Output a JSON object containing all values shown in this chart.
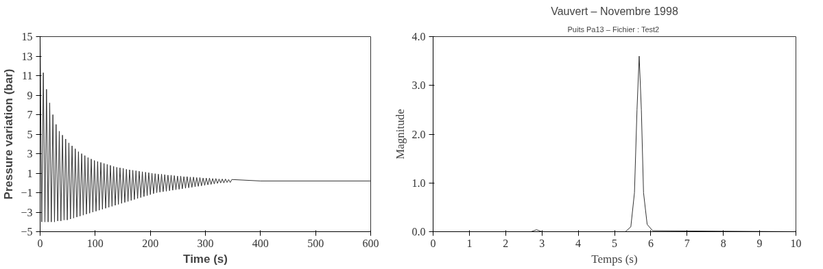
{
  "chart_data": [
    {
      "type": "line",
      "xlabel": "Time (s)",
      "ylabel": "Pressure variation (bar)",
      "xlim": [
        0,
        600
      ],
      "ylim": [
        -5,
        15
      ],
      "xticks": [
        0,
        100,
        200,
        300,
        400,
        500,
        600
      ],
      "yticks": [
        -5,
        -3,
        -1,
        1,
        3,
        5,
        7,
        9,
        11,
        13,
        15
      ],
      "grid": false,
      "series": [
        {
          "color": "#333333",
          "x": [
            0,
            2.9,
            5.8,
            8.7,
            11.6,
            14.5,
            17.4,
            20.3,
            23.2,
            26.1,
            29,
            31.9,
            34.8,
            37.7,
            40.6,
            43.5,
            46.4,
            49.3,
            52.2,
            55.1,
            58,
            60.9,
            63.8,
            66.7,
            69.6,
            72.5,
            75.4,
            78.3,
            81.2,
            84.1,
            87,
            89.9,
            92.8,
            95.7,
            98.6,
            101.5,
            104.4,
            107.3,
            110.2,
            113.1,
            116,
            118.9,
            121.8,
            124.7,
            127.6,
            130.5,
            133.4,
            136.3,
            139.2,
            142.1,
            145,
            147.9,
            150.8,
            153.7,
            156.6,
            159.5,
            162.4,
            165.3,
            168.2,
            171.1,
            174,
            176.9,
            179.8,
            182.7,
            185.6,
            188.5,
            191.4,
            194.3,
            197.2,
            200.1,
            203,
            205.9,
            208.8,
            211.7,
            214.6,
            217.5,
            220.4,
            223.3,
            226.2,
            229.1,
            232,
            234.9,
            237.8,
            240.7,
            243.6,
            246.5,
            249.4,
            252.3,
            255.2,
            258.1,
            261,
            263.9,
            266.8,
            269.7,
            272.6,
            275.5,
            278.4,
            281.3,
            284.2,
            287.1,
            290,
            292.9,
            295.8,
            298.7,
            301.6,
            304.5,
            307.4,
            310.3,
            313.2,
            316.1,
            319,
            321.9,
            324.8,
            327.7,
            330.6,
            333.5,
            336.4,
            339.3,
            342.2,
            345.1,
            348,
            400,
            600
          ],
          "values": [
            14.5,
            -4.0,
            11.3,
            -4.0,
            9.6,
            -4.0,
            8.2,
            -4.0,
            7.0,
            -4.0,
            6.0,
            -3.9,
            5.3,
            -3.9,
            4.9,
            -3.8,
            4.5,
            -3.8,
            4.1,
            -3.7,
            3.8,
            -3.6,
            3.5,
            -3.5,
            3.2,
            -3.4,
            3.0,
            -3.3,
            2.8,
            -3.2,
            2.6,
            -3.1,
            2.45,
            -3.0,
            2.3,
            -2.9,
            2.2,
            -2.8,
            2.1,
            -2.7,
            2.0,
            -2.6,
            1.9,
            -2.5,
            1.8,
            -2.4,
            1.7,
            -2.3,
            1.6,
            -2.2,
            1.55,
            -2.1,
            1.5,
            -2.0,
            1.4,
            -1.9,
            1.35,
            -1.8,
            1.3,
            -1.7,
            1.25,
            -1.6,
            1.2,
            -1.5,
            1.15,
            -1.4,
            1.1,
            -1.3,
            1.05,
            -1.2,
            1.0,
            -1.1,
            0.95,
            -1.0,
            0.9,
            -0.95,
            0.9,
            -0.9,
            0.85,
            -0.85,
            0.8,
            -0.8,
            0.8,
            -0.75,
            0.75,
            -0.7,
            0.7,
            -0.65,
            0.7,
            -0.6,
            0.65,
            -0.55,
            0.65,
            -0.5,
            0.6,
            -0.45,
            0.6,
            -0.4,
            0.55,
            -0.35,
            0.55,
            -0.3,
            0.5,
            -0.25,
            0.5,
            -0.2,
            0.5,
            -0.15,
            0.45,
            -0.1,
            0.45,
            -0.05,
            0.4,
            0.0,
            0.4,
            0.0,
            0.4,
            0.05,
            0.35,
            0.05,
            0.35,
            0.2,
            0.2
          ]
        }
      ]
    },
    {
      "type": "line",
      "title": "Vauvert – Novembre 1998",
      "subtitle": "Puits Pa13 – Fichier  : Test2",
      "xlabel": "Temps (s)",
      "ylabel": "Magnitude",
      "xlim": [
        0,
        10
      ],
      "ylim": [
        0,
        4
      ],
      "xticks": [
        0,
        1,
        2,
        3,
        4,
        5,
        6,
        7,
        8,
        9,
        10
      ],
      "yticks": [
        {
          "value": 0,
          "label": "0.0"
        },
        {
          "value": 1,
          "label": "1.0"
        },
        {
          "value": 2,
          "label": "2.0"
        },
        {
          "value": 3,
          "label": "3.0"
        },
        {
          "value": 4,
          "label": "4.0"
        }
      ],
      "grid": false,
      "series": [
        {
          "color": "#333333",
          "x": [
            0,
            2.7,
            2.85,
            3.0,
            5.3,
            5.45,
            5.55,
            5.62,
            5.68,
            5.74,
            5.8,
            5.9,
            6.05,
            10
          ],
          "values": [
            0,
            0,
            0.04,
            0,
            0,
            0.1,
            0.8,
            2.5,
            3.6,
            2.5,
            0.8,
            0.15,
            0.02,
            0
          ]
        }
      ]
    }
  ]
}
